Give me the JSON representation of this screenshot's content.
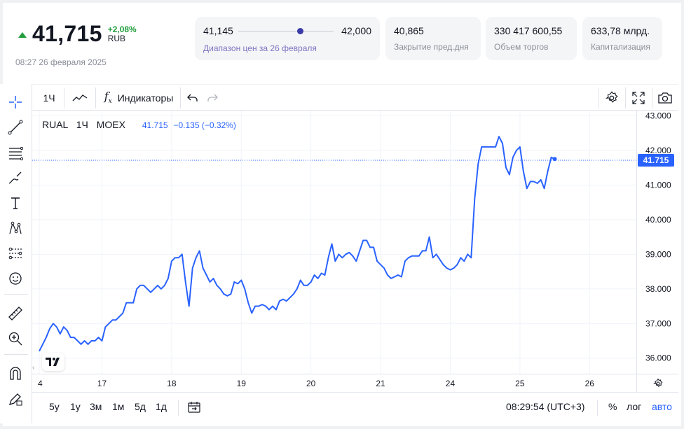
{
  "header": {
    "price": "41,715",
    "change_pct": "+2,08%",
    "currency": "RUB",
    "timestamp": "08:27 26 февраля 2025",
    "up_color": "#1f9d3a"
  },
  "stats": {
    "range": {
      "low": "41,145",
      "high": "42,000",
      "label": "Диапазон цен за 26 февраля"
    },
    "prev_close": {
      "value": "40,865",
      "label": "Закрытие пред.дня"
    },
    "volume": {
      "value": "330 417 600,55",
      "label": "Объем торгов"
    },
    "cap": {
      "value": "633,78 млрд.",
      "label": "Капитализация"
    }
  },
  "toolbar": {
    "interval": "1Ч",
    "indicators": "Индикаторы"
  },
  "legend": {
    "symbol": "RUAL",
    "interval": "1Ч",
    "exchange": "MOEX",
    "last": "41.715",
    "change": "−0.135 (−0.32%)"
  },
  "last_price_tag": "41.715",
  "bottom": {
    "ranges": [
      "5у",
      "1у",
      "3м",
      "1м",
      "5д",
      "1д"
    ],
    "clock": "08:29:54 (UTC+3)",
    "percent": "%",
    "log": "лог",
    "auto": "авто"
  },
  "colors": {
    "line": "#2962ff",
    "accent": "#2962ff"
  },
  "chart_data": {
    "type": "line",
    "title": "",
    "xlabel": "",
    "ylabel": "",
    "x_ticks": [
      {
        "label": "4",
        "index": 0
      },
      {
        "label": "17",
        "index": 18
      },
      {
        "label": "18",
        "index": 38
      },
      {
        "label": "19",
        "index": 58
      },
      {
        "label": "20",
        "index": 78
      },
      {
        "label": "21",
        "index": 98
      },
      {
        "label": "24",
        "index": 118
      },
      {
        "label": "25",
        "index": 138
      },
      {
        "label": "26",
        "index": 158
      }
    ],
    "y_ticks": [
      "36.000",
      "37.000",
      "38.000",
      "39.000",
      "40.000",
      "41.000",
      "42.000",
      "43.000"
    ],
    "ylim": [
      35.55,
      43.15
    ],
    "last_value": 41.715,
    "series": [
      {
        "values": [
          36.2,
          36.4,
          36.6,
          36.85,
          37.0,
          36.9,
          36.7,
          36.9,
          36.8,
          36.6,
          36.6,
          36.5,
          36.4,
          36.5,
          36.4,
          36.5,
          36.5,
          36.6,
          36.5,
          36.9,
          37.0,
          37.1,
          37.1,
          37.2,
          37.3,
          37.6,
          37.6,
          37.6,
          38.0,
          38.1,
          38.1,
          38.0,
          37.9,
          38.0,
          38.1,
          38.0,
          38.1,
          38.3,
          38.8,
          38.9,
          38.9,
          39.0,
          38.2,
          37.5,
          38.6,
          38.9,
          39.1,
          38.6,
          38.4,
          38.2,
          38.3,
          38.1,
          38.0,
          37.85,
          37.8,
          37.85,
          38.2,
          38.15,
          38.25,
          38.0,
          37.6,
          37.3,
          37.5,
          37.5,
          37.55,
          37.5,
          37.4,
          37.5,
          37.4,
          37.65,
          37.7,
          37.65,
          37.75,
          37.85,
          38.0,
          38.25,
          38.1,
          38.1,
          38.2,
          38.4,
          38.3,
          38.45,
          38.4,
          38.9,
          39.3,
          38.8,
          39.0,
          38.9,
          39.0,
          39.05,
          38.95,
          38.8,
          39.1,
          39.4,
          39.4,
          39.2,
          39.2,
          38.8,
          38.7,
          38.6,
          38.4,
          38.3,
          38.35,
          38.4,
          38.35,
          38.8,
          38.9,
          38.95,
          38.95,
          38.95,
          39.1,
          39.1,
          39.5,
          38.9,
          39.0,
          38.85,
          38.7,
          38.6,
          38.55,
          38.6,
          38.7,
          38.9,
          38.8,
          39.0,
          38.9,
          40.6,
          41.6,
          42.1,
          42.1,
          42.1,
          42.1,
          42.1,
          42.4,
          42.2,
          41.5,
          41.3,
          41.8,
          42.0,
          42.1,
          41.4,
          40.9,
          41.1,
          41.1,
          41.05,
          41.15,
          40.9,
          41.4,
          41.8,
          41.75
        ]
      }
    ]
  }
}
